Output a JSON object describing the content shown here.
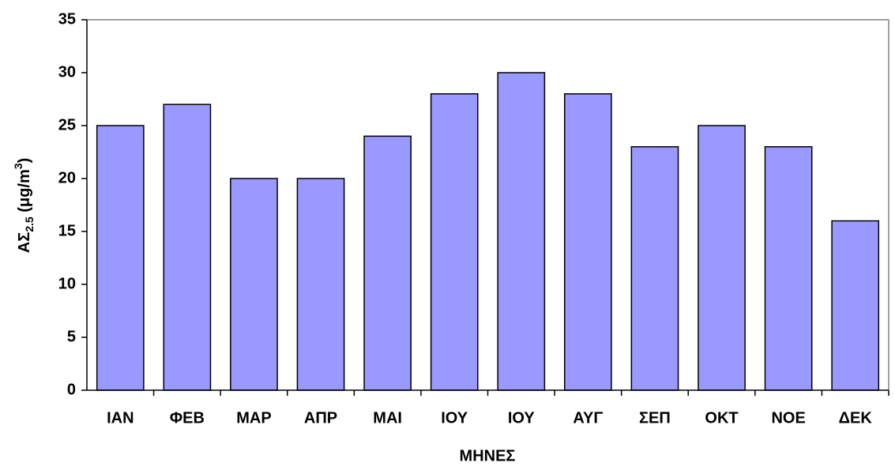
{
  "chart_data": {
    "type": "bar",
    "y_label": [
      "ΑΣ",
      "2.5",
      " (μg/m",
      "3",
      ")"
    ],
    "x_label": "ΜΗΝΕΣ",
    "categories": [
      "ΙΑΝ",
      "ΦΕΒ",
      "ΜΑΡ",
      "ΑΠΡ",
      "ΜΑΙ",
      "ΙΟΥ",
      "ΙΟΥ",
      "ΑΥΓ",
      "ΣΕΠ",
      "ΟΚΤ",
      "ΝΟΕ",
      "ΔΕΚ"
    ],
    "values": [
      25,
      27,
      20,
      20,
      24,
      28,
      30,
      28,
      23,
      25,
      23,
      16
    ],
    "color": "#9999ff",
    "ylim": [
      0,
      35
    ],
    "yticks": [
      0,
      5,
      10,
      15,
      20,
      25,
      30,
      35
    ],
    "grid": false
  }
}
